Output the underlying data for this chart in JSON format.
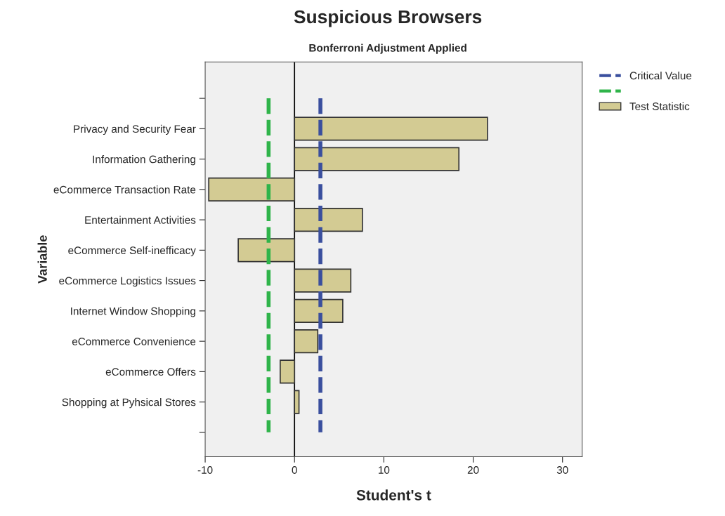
{
  "chart_data": {
    "type": "bar",
    "orientation": "horizontal",
    "title": "Suspicious Browsers",
    "subtitle": "Bonferroni Adjustment Applied",
    "xlabel": "Student's t",
    "ylabel": "Variable",
    "categories": [
      null,
      "Privacy and Security Fear",
      "Information Gathering",
      "eCommerce Transaction Rate",
      "Entertainment Activities",
      "eCommerce Self-inefficacy",
      "eCommerce Logistics Issues",
      "Internet Window Shopping",
      "eCommerce Convenience",
      "eCommerce Offers",
      "Shopping at Pyhsical Stores",
      null
    ],
    "series": [
      {
        "name": "Test Statistic",
        "color": "#d3cb93",
        "values": [
          null,
          21.6,
          18.4,
          -9.6,
          7.6,
          -6.3,
          6.3,
          5.4,
          2.6,
          -1.6,
          0.5,
          null
        ]
      }
    ],
    "xlim": [
      -10,
      32.2
    ],
    "xticks": [
      -10,
      0,
      10,
      20,
      30
    ],
    "ref_lines": [
      {
        "axis": "x",
        "value": 0,
        "color": "#000000",
        "line_style": "solid"
      },
      {
        "axis": "x",
        "value": 2.9,
        "label": "Critical Value",
        "color": "#3a4f9e",
        "line_style": "dashed"
      },
      {
        "axis": "x",
        "value": -2.9,
        "color": "#2fb44a",
        "line_style": "dashed"
      }
    ],
    "legend": "top right",
    "grid": false
  }
}
